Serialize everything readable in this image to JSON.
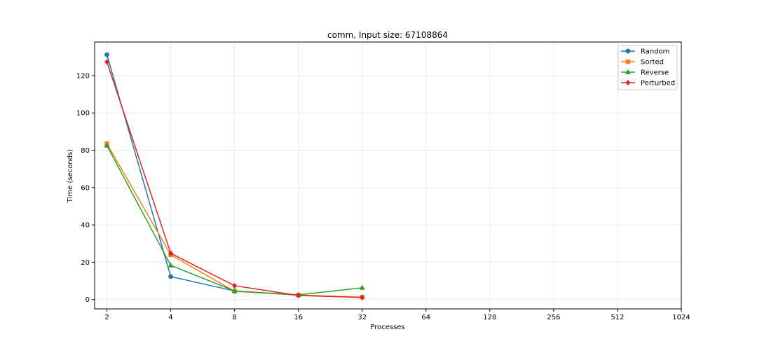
{
  "chart_data": {
    "type": "line",
    "title": "comm, Input size: 67108864",
    "xlabel": "Processes",
    "ylabel": "Time (seconds)",
    "x_scale": "log2",
    "x_ticks": [
      2,
      4,
      8,
      16,
      32,
      64,
      128,
      256,
      512,
      1024
    ],
    "x_tick_labels": [
      "2",
      "4",
      "8",
      "16",
      "32",
      "64",
      "128",
      "256",
      "512",
      "1024"
    ],
    "xlim": [
      1.75,
      1024
    ],
    "y_ticks": [
      0,
      20,
      40,
      60,
      80,
      100,
      120
    ],
    "y_tick_labels": [
      "0",
      "20",
      "40",
      "60",
      "80",
      "100",
      "120"
    ],
    "ylim": [
      -5,
      138
    ],
    "grid": true,
    "legend_position": "top-right",
    "series": [
      {
        "name": "Random",
        "color": "#1f77b4",
        "marker": "circle",
        "x": [
          2,
          4,
          8,
          16,
          32
        ],
        "values": [
          131.2,
          12.3,
          4.6,
          2.3,
          1.2
        ]
      },
      {
        "name": "Sorted",
        "color": "#ff7f0e",
        "marker": "square",
        "x": [
          2,
          4,
          8,
          16,
          32
        ],
        "values": [
          83.5,
          24.0,
          4.4,
          2.4,
          1.3
        ]
      },
      {
        "name": "Reverse",
        "color": "#2ca02c",
        "marker": "triangle",
        "x": [
          2,
          4,
          8,
          16,
          32
        ],
        "values": [
          82.5,
          18.3,
          4.6,
          2.5,
          6.3
        ]
      },
      {
        "name": "Perturbed",
        "color": "#d62728",
        "marker": "diamond",
        "x": [
          2,
          4,
          8,
          16,
          32
        ],
        "values": [
          127.3,
          24.8,
          7.4,
          2.2,
          1.1
        ]
      }
    ]
  }
}
